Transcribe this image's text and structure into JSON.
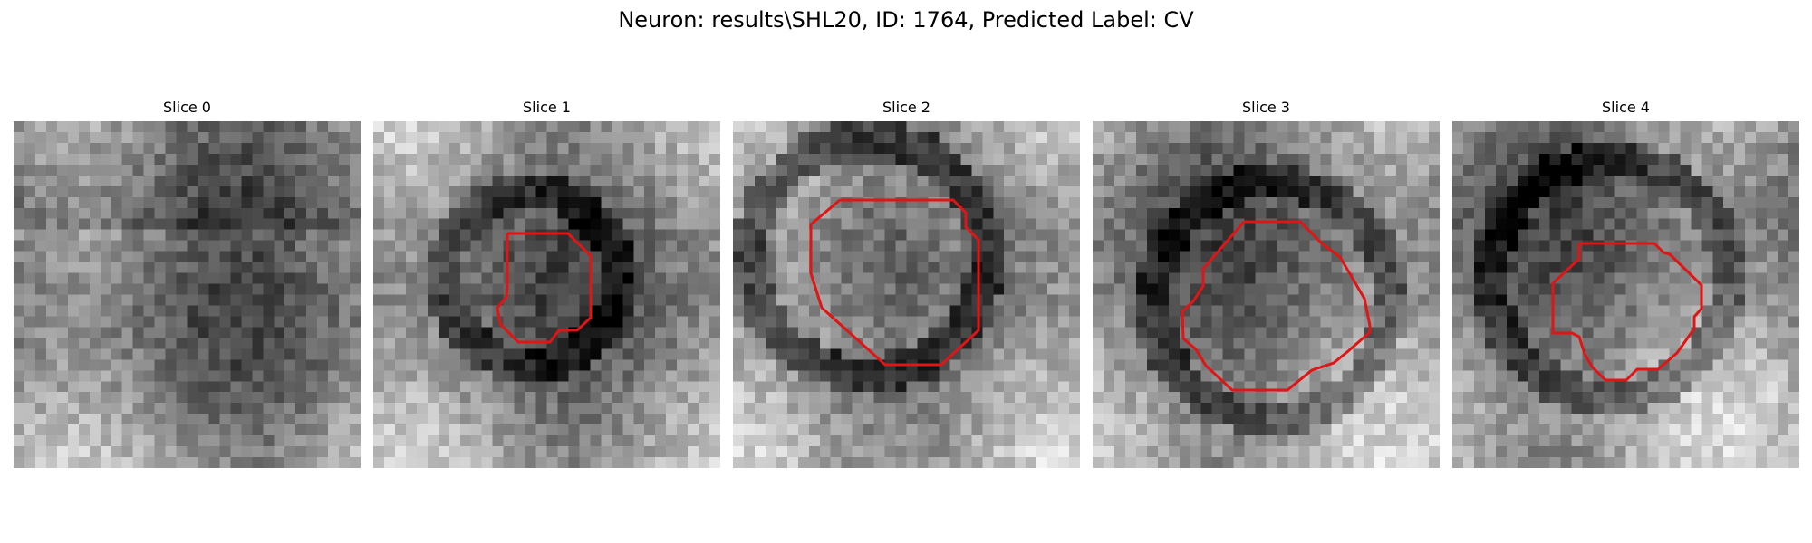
{
  "figure": {
    "title": "Neuron: results\\SHL20, ID: 1764, Predicted Label: CV"
  },
  "panels": [
    {
      "title": "Slice 0"
    },
    {
      "title": "Slice 1"
    },
    {
      "title": "Slice 2"
    },
    {
      "title": "Slice 3"
    },
    {
      "title": "Slice 4"
    }
  ],
  "colors": {
    "contour": "#e01515",
    "colormap": "gray"
  }
}
